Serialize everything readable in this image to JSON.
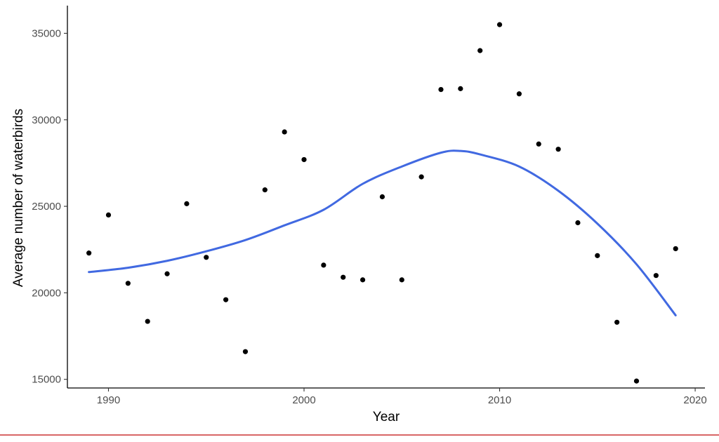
{
  "chart_data": {
    "type": "scatter",
    "xlabel": "Year",
    "ylabel": "Average number of waterbirds",
    "xlim": [
      1987.9,
      2020.5
    ],
    "ylim": [
      14500,
      36600
    ],
    "x_ticks": [
      1990,
      2000,
      2010,
      2020
    ],
    "x_tick_labels": [
      "1990",
      "2000",
      "2010",
      "2020"
    ],
    "y_ticks": [
      15000,
      20000,
      25000,
      30000,
      35000
    ],
    "y_tick_labels": [
      "15000",
      "20000",
      "25000",
      "30000",
      "35000"
    ],
    "grid": false,
    "legend": "none",
    "series": [
      {
        "kind": "points",
        "color": "#000000",
        "x": [
          1989,
          1990,
          1991,
          1992,
          1993,
          1994,
          1995,
          1996,
          1997,
          1998,
          1999,
          2000,
          2001,
          2002,
          2003,
          2004,
          2005,
          2006,
          2007,
          2008,
          2009,
          2010,
          2011,
          2012,
          2013,
          2014,
          2015,
          2016,
          2017,
          2018,
          2019
        ],
        "y": [
          22300,
          24500,
          20550,
          18350,
          21100,
          25150,
          22050,
          19600,
          16600,
          25950,
          29300,
          27700,
          21600,
          20900,
          20750,
          25550,
          20750,
          26700,
          31750,
          31800,
          34000,
          35500,
          31500,
          28600,
          28300,
          24050,
          22150,
          18300,
          14900,
          21000,
          22550
        ]
      },
      {
        "kind": "smooth",
        "color": "#4169e1",
        "x": [
          1989,
          1991,
          1993,
          1995,
          1997,
          1999,
          2001,
          2003,
          2005,
          2007,
          2008,
          2009,
          2011,
          2013,
          2015,
          2017,
          2019
        ],
        "y": [
          21200,
          21450,
          21850,
          22400,
          23050,
          23900,
          24800,
          26300,
          27300,
          28100,
          28200,
          28000,
          27300,
          25900,
          24000,
          21650,
          18700
        ]
      }
    ]
  }
}
